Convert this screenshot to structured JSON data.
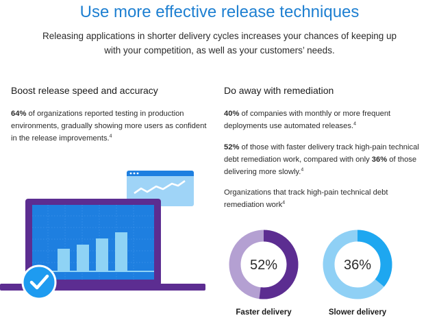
{
  "header": {
    "title": "Use more effective release techniques",
    "intro": "Releasing applications in shorter delivery cycles increases your chances of keeping up with your competition, as well as your customers’ needs."
  },
  "left": {
    "heading": "Boost release speed and accuracy",
    "stat": "64%",
    "text": " of organizations reported testing in production environments, gradually showing more users as confident in the release improvements.",
    "footnote": "4"
  },
  "right": {
    "heading": "Do away with remediation",
    "p1": {
      "stat": "40%",
      "text": " of companies with monthly or more frequent deployments use automated releases.",
      "footnote": "4"
    },
    "p2": {
      "stat": "52%",
      "text_a": " of those with faster delivery track high-pain technical debt remediation work, compared with only ",
      "stat2": "36%",
      "text_b": " of those delivering more slowly.",
      "footnote": "4"
    },
    "p3": {
      "text": "Organizations that track high-pain technical debt remediation work",
      "footnote": "4"
    }
  },
  "donuts": [
    {
      "value_label": "52%",
      "fraction": 0.52,
      "label": "Faster delivery",
      "color": "#5c2d91",
      "track": "#b4a0d2"
    },
    {
      "value_label": "36%",
      "fraction": 0.36,
      "label": "Slower delivery",
      "color": "#1ea7f0",
      "track": "#8fd0f5"
    }
  ],
  "colors": {
    "title": "#1d7fd1",
    "laptop": "#5c2d91",
    "screen": "#1e7fe0",
    "bars": "#8fd3f5",
    "check": "#1e9bf0"
  }
}
